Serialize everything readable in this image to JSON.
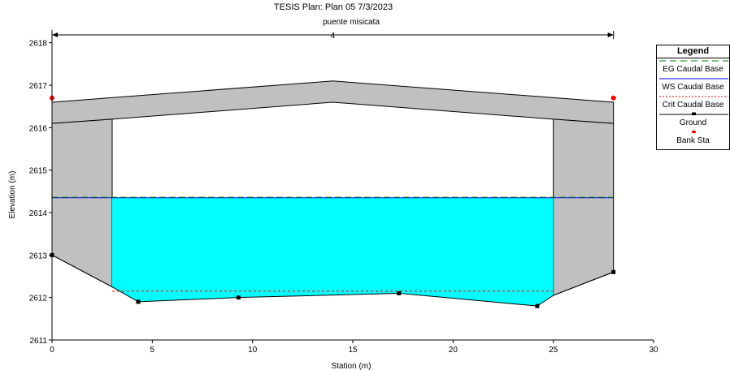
{
  "header": {
    "title": "TESIS        Plan: Plan 05     7/3/2023",
    "subtitle": "puente misicata"
  },
  "chart_data": {
    "type": "line",
    "xlabel": "Station (m)",
    "ylabel": "Elevation (m)",
    "xlim": [
      0,
      30
    ],
    "ylim": [
      2611,
      2618.3
    ],
    "xticks": [
      0,
      5,
      10,
      15,
      20,
      25,
      30
    ],
    "yticks": [
      2611,
      2612,
      2613,
      2614,
      2615,
      2616,
      2617,
      2618
    ],
    "bridge_width_label": "4",
    "legend": {
      "title": "Legend",
      "position": "right",
      "items": [
        {
          "label": "EG Caudal Base",
          "color": "#008000",
          "style": "dashed"
        },
        {
          "label": "WS Caudal Base",
          "color": "#0000ff",
          "style": "solid"
        },
        {
          "label": "Crit Caudal Base",
          "color": "#ff0000",
          "style": "dotted"
        },
        {
          "label": "Ground",
          "color": "#000000",
          "style": "solid-marker"
        },
        {
          "label": "Bank Sta",
          "color": "#ff0000",
          "style": "marker"
        }
      ]
    },
    "ground": {
      "x": [
        0,
        3,
        4.3,
        9.3,
        17.3,
        24.2,
        25,
        28
      ],
      "y": [
        2613.0,
        2612.25,
        2611.9,
        2612.0,
        2612.1,
        2611.8,
        2612.05,
        2612.6
      ]
    },
    "ground_markers": {
      "x": [
        0,
        4.3,
        9.3,
        17.3,
        24.2,
        28
      ],
      "y": [
        2613.0,
        2611.9,
        2612.0,
        2612.1,
        2611.8,
        2612.6
      ]
    },
    "deck_top": {
      "x": [
        0,
        14,
        28
      ],
      "y": [
        2616.6,
        2617.1,
        2616.6
      ]
    },
    "deck_low_chord": {
      "x": [
        0,
        3,
        14,
        25,
        28
      ],
      "y": [
        2616.1,
        2616.2,
        2616.6,
        2616.2,
        2616.1
      ]
    },
    "abutment_left_x": 3,
    "abutment_right_x": 25,
    "ws_elevation": 2614.35,
    "eg_elevation": 2614.36,
    "crit_elevation": 2612.15,
    "bank_stations": {
      "x": [
        0,
        28
      ],
      "y": [
        2616.7,
        2616.7
      ]
    },
    "water_color": "#00ffff",
    "structure_color": "#c0c0c0"
  }
}
